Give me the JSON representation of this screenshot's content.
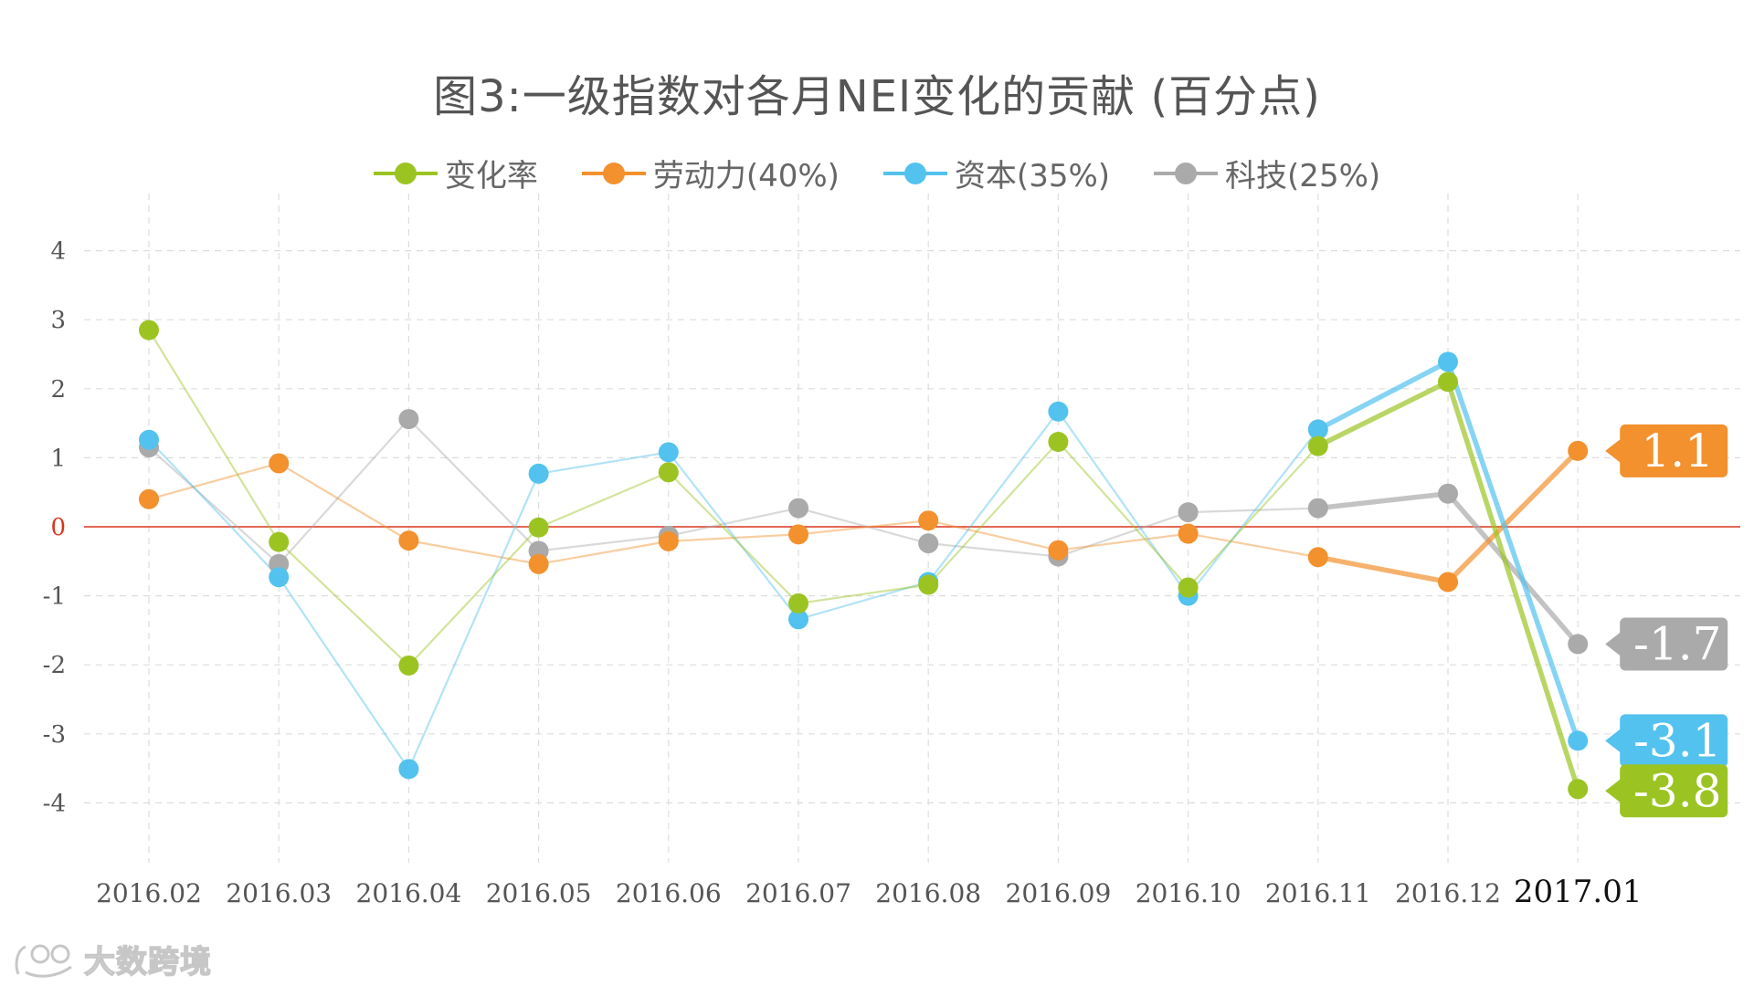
{
  "chart_data": {
    "type": "line",
    "title": "图3:一级指数对各月NEI变化的贡献 (百分点)",
    "categories": [
      "2016.02",
      "2016.03",
      "2016.04",
      "2016.05",
      "2016.06",
      "2016.07",
      "2016.08",
      "2016.09",
      "2016.10",
      "2016.11",
      "2016.12",
      "2017.01"
    ],
    "highlight_category": "2017.01",
    "ylim": [
      -4.5,
      4.5
    ],
    "yticks": [
      4,
      3,
      2,
      1,
      0,
      -1,
      -2,
      -3,
      -4
    ],
    "xlabel": "",
    "ylabel": "",
    "grid": true,
    "legend_position": "top",
    "zero_line_color": "#d9371d",
    "series": [
      {
        "name": "变化率",
        "color": "#9bc423",
        "values": [
          2.85,
          -0.22,
          -2.01,
          -0.01,
          0.79,
          -1.11,
          -0.84,
          1.23,
          -0.88,
          1.17,
          2.1,
          -3.8
        ],
        "end_label": "-3.8"
      },
      {
        "name": "劳动力(40%)",
        "color": "#f2912d",
        "values": [
          0.4,
          0.92,
          -0.2,
          -0.54,
          -0.21,
          -0.11,
          0.09,
          -0.34,
          -0.1,
          -0.44,
          -0.8,
          1.1
        ],
        "end_label": "1.1"
      },
      {
        "name": "资本(35%)",
        "color": "#53c2ee",
        "values": [
          1.26,
          -0.73,
          -3.51,
          0.77,
          1.08,
          -1.34,
          -0.8,
          1.67,
          -1.0,
          1.41,
          2.39,
          -3.1
        ],
        "end_label": "-3.1"
      },
      {
        "name": "科技(25%)",
        "color": "#aaaaaa",
        "values": [
          1.15,
          -0.54,
          1.56,
          -0.35,
          -0.13,
          0.27,
          -0.24,
          -0.43,
          0.21,
          0.27,
          0.48,
          -1.7
        ],
        "end_label": "-1.7"
      }
    ]
  },
  "watermark": {
    "text": "大数跨境"
  }
}
